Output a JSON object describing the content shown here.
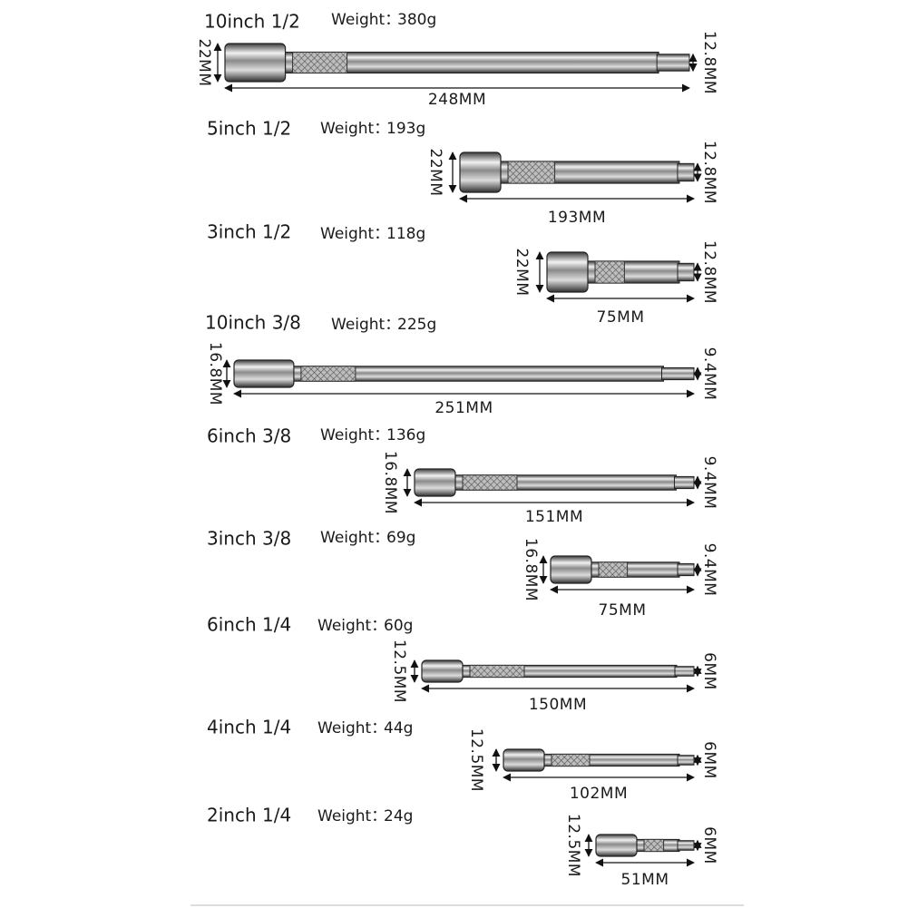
{
  "weight_label": "Weight：",
  "items": [
    {
      "name": "10inch 1/2",
      "weight": "380g",
      "head_size": "22MM",
      "drive_size": "12.8MM",
      "length": "248MM"
    },
    {
      "name": "5inch 1/2",
      "weight": "193g",
      "head_size": "22MM",
      "drive_size": "12.8MM",
      "length": "193MM"
    },
    {
      "name": "3inch 1/2",
      "weight": "118g",
      "head_size": "22MM",
      "drive_size": "12.8MM",
      "length": "75MM"
    },
    {
      "name": "10inch 3/8",
      "weight": "225g",
      "head_size": "16.8MM",
      "drive_size": "9.4MM",
      "length": "251MM"
    },
    {
      "name": "6inch 3/8",
      "weight": "136g",
      "head_size": "16.8MM",
      "drive_size": "9.4MM",
      "length": "151MM"
    },
    {
      "name": "3inch 3/8",
      "weight": "69g",
      "head_size": "16.8MM",
      "drive_size": "9.4MM",
      "length": "75MM"
    },
    {
      "name": "6inch 1/4",
      "weight": "60g",
      "head_size": "12.5MM",
      "drive_size": "6MM",
      "length": "150MM"
    },
    {
      "name": "4inch 1/4",
      "weight": "44g",
      "head_size": "12.5MM",
      "drive_size": "6MM",
      "length": "102MM"
    },
    {
      "name": "2inch 1/4",
      "weight": "24g",
      "head_size": "12.5MM",
      "drive_size": "6MM",
      "length": "51MM"
    }
  ]
}
